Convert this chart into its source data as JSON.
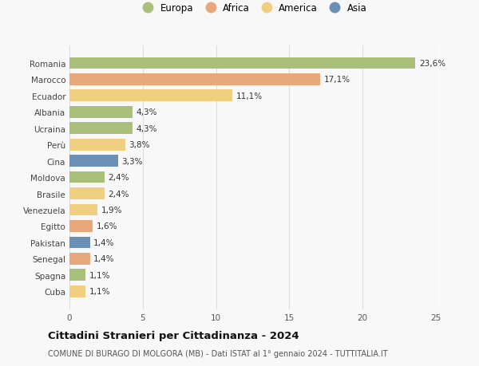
{
  "countries": [
    "Romania",
    "Marocco",
    "Ecuador",
    "Albania",
    "Ucraina",
    "Perù",
    "Cina",
    "Moldova",
    "Brasile",
    "Venezuela",
    "Egitto",
    "Pakistan",
    "Senegal",
    "Spagna",
    "Cuba"
  ],
  "values": [
    23.6,
    17.1,
    11.1,
    4.3,
    4.3,
    3.8,
    3.3,
    2.4,
    2.4,
    1.9,
    1.6,
    1.4,
    1.4,
    1.1,
    1.1
  ],
  "labels": [
    "23,6%",
    "17,1%",
    "11,1%",
    "4,3%",
    "4,3%",
    "3,8%",
    "3,3%",
    "2,4%",
    "2,4%",
    "1,9%",
    "1,6%",
    "1,4%",
    "1,4%",
    "1,1%",
    "1,1%"
  ],
  "continent": [
    "Europa",
    "Africa",
    "America",
    "Europa",
    "Europa",
    "America",
    "Asia",
    "Europa",
    "America",
    "America",
    "Africa",
    "Asia",
    "Africa",
    "Europa",
    "America"
  ],
  "colors": {
    "Europa": "#a8c07a",
    "Africa": "#e8a87c",
    "America": "#f0d080",
    "Asia": "#6b8fb5"
  },
  "legend_labels": [
    "Europa",
    "Africa",
    "America",
    "Asia"
  ],
  "legend_colors": [
    "#a8c07a",
    "#e8a87c",
    "#f0d080",
    "#6b8fb5"
  ],
  "xlim": [
    0,
    25
  ],
  "xticks": [
    0,
    5,
    10,
    15,
    20,
    25
  ],
  "title": "Cittadini Stranieri per Cittadinanza - 2024",
  "subtitle": "COMUNE DI BURAGO DI MOLGORA (MB) - Dati ISTAT al 1° gennaio 2024 - TUTTITALIA.IT",
  "background_color": "#f8f8f8",
  "grid_color": "#dddddd",
  "bar_height": 0.72,
  "label_fontsize": 7.5,
  "tick_fontsize": 7.5,
  "title_fontsize": 9.5,
  "subtitle_fontsize": 7.0,
  "legend_fontsize": 8.5
}
